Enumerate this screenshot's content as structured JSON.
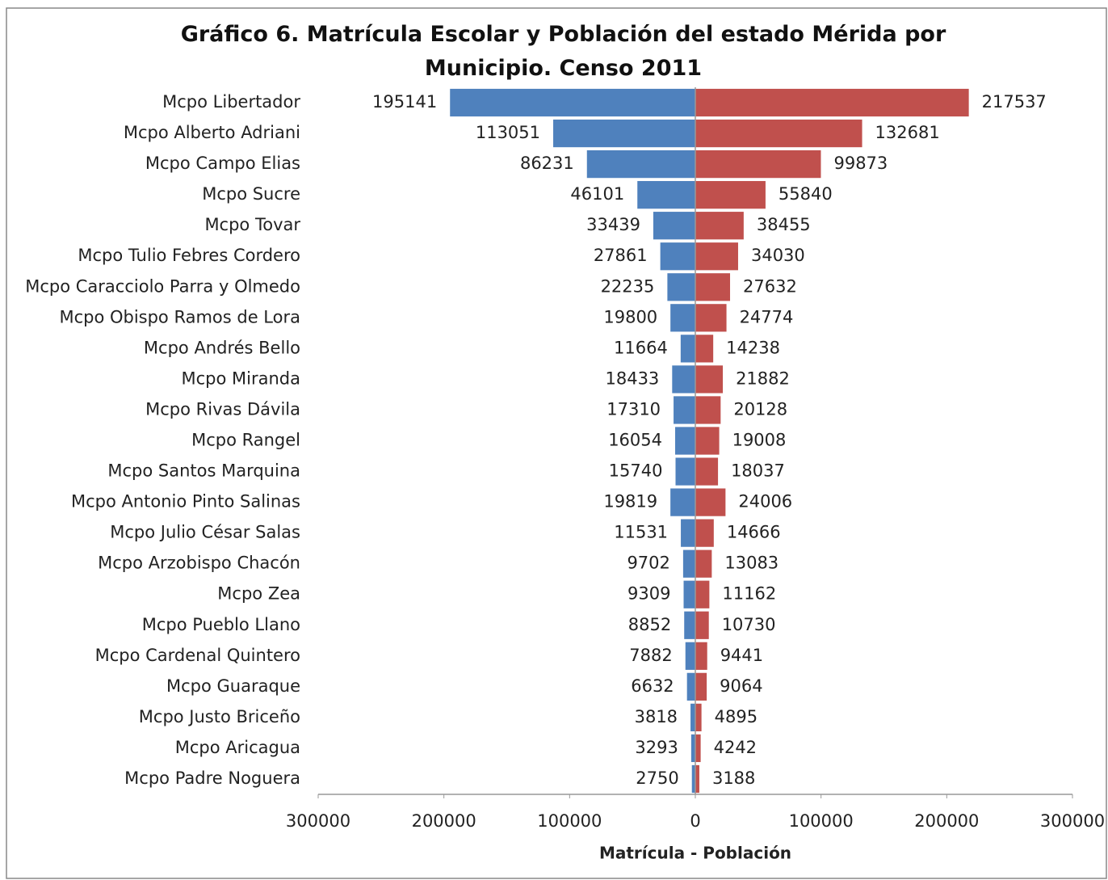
{
  "chart_data": {
    "type": "bar",
    "orientation": "horizontal",
    "title": "Gráfico 6. Matrícula Escolar y Población del estado Mérida por Municipio. Censo 2011",
    "xlabel": "Matrícula - Población",
    "categories": [
      "Mcpo Libertador",
      "Mcpo Alberto Adriani",
      "Mcpo Campo Elias",
      "Mcpo Sucre",
      "Mcpo Tovar",
      "Mcpo Tulio Febres Cordero",
      "Mcpo Caracciolo Parra y Olmedo",
      "Mcpo Obispo Ramos de Lora",
      "Mcpo Andrés Bello",
      "Mcpo Miranda",
      "Mcpo Rivas Dávila",
      "Mcpo Rangel",
      "Mcpo Santos Marquina",
      "Mcpo Antonio Pinto Salinas",
      "Mcpo Julio César Salas",
      "Mcpo Arzobispo Chacón",
      "Mcpo Zea",
      "Mcpo Pueblo Llano",
      "Mcpo Cardenal Quintero",
      "Mcpo Guaraque",
      "Mcpo Justo Briceño",
      "Mcpo Aricagua",
      "Mcpo Padre Noguera"
    ],
    "series": [
      {
        "color": "#4f81bd",
        "values": [
          -195141,
          -113051,
          -86231,
          -46101,
          -33439,
          -27861,
          -22235,
          -19800,
          -11664,
          -18433,
          -17310,
          -16054,
          -15740,
          -19819,
          -11531,
          -9702,
          -9309,
          -8852,
          -7882,
          -6632,
          -3818,
          -3293,
          -2750
        ],
        "value_labels": [
          "195141",
          "113051",
          "86231",
          "46101",
          "33439",
          "27861",
          "22235",
          "19800",
          "11664",
          "18433",
          "17310",
          "16054",
          "15740",
          "19819",
          "11531",
          "9702",
          "9309",
          "8852",
          "7882",
          "6632",
          "3818",
          "3293",
          "2750"
        ]
      },
      {
        "color": "#c0504d",
        "values": [
          217537,
          132681,
          99873,
          55840,
          38455,
          34030,
          27632,
          24774,
          14238,
          21882,
          20128,
          19008,
          18037,
          24006,
          14666,
          13083,
          11162,
          10730,
          9441,
          9064,
          4895,
          4242,
          3188
        ]
      }
    ],
    "xlim": [
      -300000,
      300000
    ],
    "xticks": [
      {
        "value": -300000,
        "label": "300000"
      },
      {
        "value": -200000,
        "label": "200000"
      },
      {
        "value": -100000,
        "label": "100000"
      },
      0,
      100000,
      200000,
      300000
    ]
  }
}
